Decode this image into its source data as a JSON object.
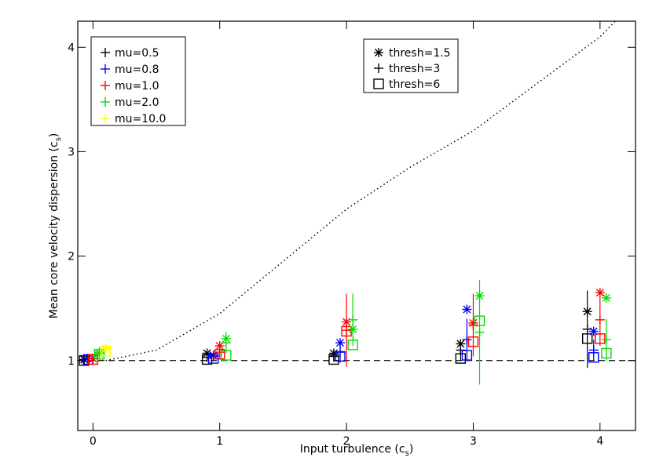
{
  "chart_data": {
    "type": "scatter",
    "xlabel": {
      "text": "Input turbulence (c",
      "sub": "s",
      "end": ")"
    },
    "ylabel": {
      "text": "Mean core velocity dispersion (c",
      "sub": "s",
      "end": ")"
    },
    "xlim": [
      -0.12,
      4.28
    ],
    "ylim": [
      0.33,
      4.25
    ],
    "xticks": [
      0,
      1,
      2,
      3,
      4
    ],
    "yticks": [
      1,
      2,
      3,
      4
    ],
    "reference_y": 1,
    "curve": {
      "x": [
        0.1,
        0.5,
        1,
        1.5,
        2,
        2.5,
        3,
        3.5,
        4,
        4.12
      ],
      "values": [
        1,
        1.1,
        1.45,
        1.95,
        2.45,
        2.85,
        3.2,
        3.65,
        4.1,
        4.25
      ]
    },
    "color_legend": [
      {
        "name": "mu=0.5",
        "color": "#000000"
      },
      {
        "name": "mu=0.8",
        "color": "#0000ff"
      },
      {
        "name": "mu=1.0",
        "color": "#ff0000"
      },
      {
        "name": "mu=2.0",
        "color": "#00dd00"
      },
      {
        "name": "mu=10.0",
        "color": "#ffff00"
      }
    ],
    "marker_legend": [
      {
        "name": "thresh=1.5",
        "marker": "asterisk"
      },
      {
        "name": "thresh=3",
        "marker": "plus"
      },
      {
        "name": "thresh=6",
        "marker": "square"
      }
    ],
    "series": [
      {
        "color": "#000000",
        "marker": "asterisk",
        "x": [
          -0.07,
          0.9,
          1.9,
          2.9,
          3.9
        ],
        "values": [
          1.01,
          1.07,
          1.07,
          1.16,
          1.47
        ]
      },
      {
        "color": "#000000",
        "marker": "plus",
        "x": [
          -0.07,
          0.9,
          1.9,
          2.9,
          3.9
        ],
        "values": [
          1.01,
          1.03,
          1.04,
          1.1,
          1.3
        ],
        "errors": [
          0.02,
          0.03,
          0.05,
          0.1,
          0.37
        ]
      },
      {
        "color": "#000000",
        "marker": "square",
        "x": [
          -0.07,
          0.9,
          1.9,
          2.9,
          3.9
        ],
        "values": [
          1,
          1.01,
          1.01,
          1.02,
          1.21
        ]
      },
      {
        "color": "#0000ff",
        "marker": "asterisk",
        "x": [
          -0.04,
          0.95,
          1.95,
          2.95,
          3.95
        ],
        "values": [
          1.02,
          1.05,
          1.17,
          1.49,
          1.28
        ]
      },
      {
        "color": "#0000ff",
        "marker": "plus",
        "x": [
          -0.04,
          0.95,
          1.95,
          2.95,
          3.95
        ],
        "values": [
          1.02,
          1.04,
          1.08,
          1.2,
          1.1
        ],
        "errors": [
          0.02,
          0.03,
          0.1,
          0.2,
          0.1
        ]
      },
      {
        "color": "#0000ff",
        "marker": "square",
        "x": [
          -0.04,
          0.95,
          1.95,
          2.95,
          3.95
        ],
        "values": [
          1.01,
          1.02,
          1.04,
          1.05,
          1.03
        ]
      },
      {
        "color": "#ff0000",
        "marker": "asterisk",
        "x": [
          0,
          1,
          2,
          3,
          4
        ],
        "values": [
          1.02,
          1.14,
          1.37,
          1.36,
          1.65
        ]
      },
      {
        "color": "#ff0000",
        "marker": "plus",
        "x": [
          0,
          1,
          2,
          3,
          4
        ],
        "values": [
          1.02,
          1.08,
          1.29,
          1.34,
          1.39
        ],
        "errors": [
          0.02,
          0.06,
          0.35,
          0.3,
          0.25
        ]
      },
      {
        "color": "#ff0000",
        "marker": "square",
        "x": [
          0,
          1,
          2,
          3,
          4
        ],
        "values": [
          1.01,
          1.06,
          1.28,
          1.18,
          1.21
        ]
      },
      {
        "color": "#00dd00",
        "marker": "asterisk",
        "x": [
          0.05,
          1.05,
          2.05,
          3.05,
          4.05
        ],
        "values": [
          1.07,
          1.21,
          1.3,
          1.62,
          1.6
        ]
      },
      {
        "color": "#00dd00",
        "marker": "plus",
        "x": [
          0.05,
          1.05,
          2.05,
          3.05,
          4.05
        ],
        "values": [
          1.08,
          1.17,
          1.39,
          1.27,
          1.2
        ],
        "errors": [
          0.03,
          0.1,
          0.25,
          0.5,
          0.2
        ]
      },
      {
        "color": "#00dd00",
        "marker": "square",
        "x": [
          0.05,
          1.05,
          2.05,
          3.05,
          4.05
        ],
        "values": [
          1.06,
          1.05,
          1.15,
          1.38,
          1.07
        ]
      },
      {
        "color": "#ffff00",
        "marker": "asterisk",
        "x": [
          0.1
        ],
        "values": [
          1.11
        ]
      },
      {
        "color": "#ffff00",
        "marker": "plus",
        "x": [
          0.1
        ],
        "values": [
          1.12
        ],
        "errors": [
          0.04
        ]
      },
      {
        "color": "#ffff00",
        "marker": "square",
        "x": [
          0.1
        ],
        "values": [
          1.09
        ]
      }
    ]
  }
}
